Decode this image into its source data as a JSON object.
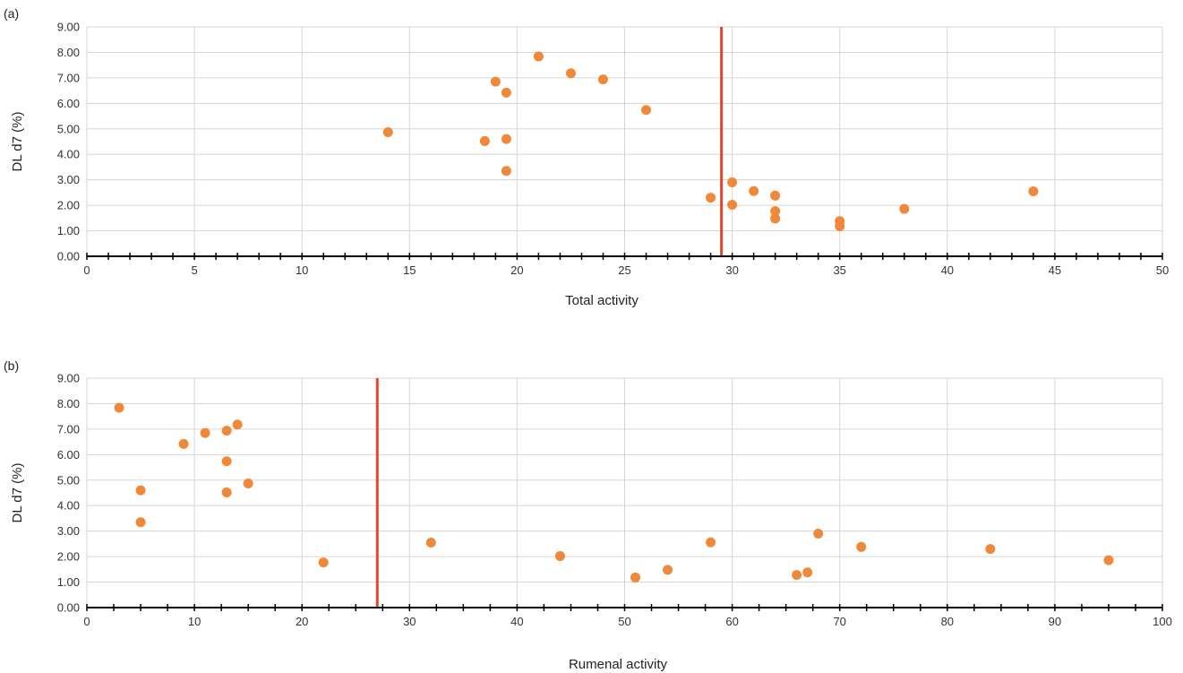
{
  "chart_data": [
    {
      "type": "scatter",
      "panel_label": "(a)",
      "xlabel": "Total activity",
      "ylabel": "DL d7 (%)",
      "xlim": [
        0,
        50
      ],
      "ylim": [
        0,
        9
      ],
      "x_ticks": [
        "0",
        "5",
        "10",
        "15",
        "20",
        "25",
        "30",
        "35",
        "40",
        "45",
        "50"
      ],
      "y_ticks": [
        "0.00",
        "1.00",
        "2.00",
        "3.00",
        "4.00",
        "5.00",
        "6.00",
        "7.00",
        "8.00",
        "9.00"
      ],
      "grid": true,
      "marker_color": "#f0883a",
      "threshold_color": "#e8452a",
      "threshold_x": 29.5,
      "points": [
        {
          "x": 14,
          "y": 4.87
        },
        {
          "x": 18.5,
          "y": 4.52
        },
        {
          "x": 19,
          "y": 6.85
        },
        {
          "x": 19.5,
          "y": 6.42
        },
        {
          "x": 19.5,
          "y": 4.6
        },
        {
          "x": 19.5,
          "y": 3.35
        },
        {
          "x": 21,
          "y": 7.84
        },
        {
          "x": 22.5,
          "y": 7.18
        },
        {
          "x": 24,
          "y": 6.94
        },
        {
          "x": 26,
          "y": 5.74
        },
        {
          "x": 29,
          "y": 2.3
        },
        {
          "x": 30,
          "y": 2.9
        },
        {
          "x": 30,
          "y": 2.02
        },
        {
          "x": 31,
          "y": 2.56
        },
        {
          "x": 32,
          "y": 2.38
        },
        {
          "x": 32,
          "y": 1.77
        },
        {
          "x": 32,
          "y": 1.48
        },
        {
          "x": 35,
          "y": 1.38
        },
        {
          "x": 35,
          "y": 1.18
        },
        {
          "x": 38,
          "y": 1.86
        },
        {
          "x": 44,
          "y": 2.55
        }
      ]
    },
    {
      "type": "scatter",
      "panel_label": "(b)",
      "xlabel": "Rumenal activity",
      "ylabel": "DL d7 (%)",
      "xlim": [
        0,
        100
      ],
      "ylim": [
        0,
        9
      ],
      "x_ticks": [
        "0",
        "10",
        "20",
        "30",
        "40",
        "50",
        "60",
        "70",
        "80",
        "90",
        "100"
      ],
      "y_ticks": [
        "0.00",
        "1.00",
        "2.00",
        "3.00",
        "4.00",
        "5.00",
        "6.00",
        "7.00",
        "8.00",
        "9.00"
      ],
      "grid": true,
      "marker_color": "#f0883a",
      "threshold_color": "#e8452a",
      "threshold_x": 27,
      "points": [
        {
          "x": 3,
          "y": 7.84
        },
        {
          "x": 5,
          "y": 4.6
        },
        {
          "x": 5,
          "y": 3.35
        },
        {
          "x": 9,
          "y": 6.42
        },
        {
          "x": 11,
          "y": 6.85
        },
        {
          "x": 13,
          "y": 6.94
        },
        {
          "x": 13,
          "y": 5.74
        },
        {
          "x": 13,
          "y": 4.52
        },
        {
          "x": 14,
          "y": 7.18
        },
        {
          "x": 15,
          "y": 4.87
        },
        {
          "x": 22,
          "y": 1.77
        },
        {
          "x": 32,
          "y": 2.55
        },
        {
          "x": 44,
          "y": 2.02
        },
        {
          "x": 51,
          "y": 1.18
        },
        {
          "x": 54,
          "y": 1.48
        },
        {
          "x": 58,
          "y": 2.56
        },
        {
          "x": 66,
          "y": 1.28
        },
        {
          "x": 67,
          "y": 1.38
        },
        {
          "x": 68,
          "y": 2.9
        },
        {
          "x": 72,
          "y": 2.38
        },
        {
          "x": 84,
          "y": 2.3
        },
        {
          "x": 95,
          "y": 1.86
        }
      ]
    }
  ]
}
